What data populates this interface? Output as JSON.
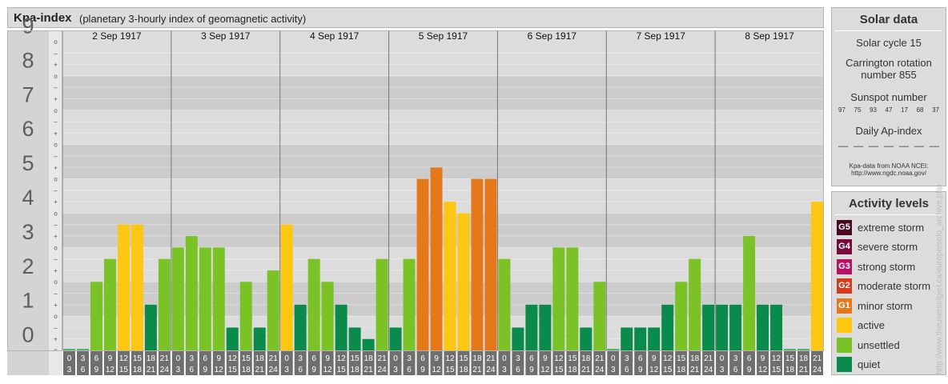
{
  "header": {
    "title": "Kpa-index",
    "subtitle": "(planetary 3-hourly index of geomagnetic activity)"
  },
  "chart_data": {
    "type": "bar",
    "y_ticks": [
      "0",
      "1",
      "2",
      "3",
      "4",
      "5",
      "6",
      "7",
      "8",
      "9"
    ],
    "sub_ticks": [
      "o",
      "+",
      "–"
    ],
    "ylim": [
      0,
      9
    ],
    "days": [
      "2 Sep 1917",
      "3 Sep 1917",
      "4 Sep 1917",
      "5 Sep 1917",
      "6 Sep 1917",
      "7 Sep 1917",
      "8 Sep 1917"
    ],
    "slot_labels": [
      [
        "0",
        "3"
      ],
      [
        "3",
        "6"
      ],
      [
        "6",
        "9"
      ],
      [
        "9",
        "12"
      ],
      [
        "12",
        "15"
      ],
      [
        "15",
        "18"
      ],
      [
        "18",
        "21"
      ],
      [
        "21",
        "24"
      ]
    ],
    "values": [
      [
        0,
        0,
        2,
        2.667,
        3.667,
        3.667,
        1.333,
        2.667
      ],
      [
        3,
        3.333,
        3,
        3,
        0.667,
        2,
        0.667,
        2.333
      ],
      [
        3.667,
        1.333,
        2.667,
        2,
        1.333,
        0.667,
        0.333,
        2.667
      ],
      [
        0.667,
        2.667,
        5,
        5.333,
        4.333,
        4,
        5,
        5
      ],
      [
        2.667,
        0.667,
        1.333,
        1.333,
        3,
        3,
        0.667,
        2
      ],
      [
        0,
        0.667,
        0.667,
        0.667,
        1.333,
        2,
        2.667,
        1.333
      ],
      [
        1.333,
        1.333,
        3.333,
        1.333,
        1.333,
        0,
        0,
        4.333
      ]
    ],
    "colors": {
      "quiet": "#0b8b4b",
      "unsettled": "#7ac225",
      "active": "#fcc611",
      "minor": "#e6781c",
      "bar_below_zero": "#56b468",
      "band_dark": "#cccccc",
      "band_light": "#dcdcdc",
      "slot_box": "#6f6f6f",
      "slot_text": "#ffffff",
      "tick_text": "#5d5d5d"
    }
  },
  "solar": {
    "title": "Solar data",
    "cycle": "Solar cycle 15",
    "carrington_line1": "Carrington rotation",
    "carrington_line2": "number 855",
    "sunspot_label": "Sunspot number",
    "sunspots": [
      "97",
      "75",
      "93",
      "47",
      "17",
      "68",
      "37"
    ],
    "ap_label": "Daily Ap-index",
    "ap_values": [
      "––",
      "––",
      "––",
      "––",
      "––",
      "––",
      "––"
    ],
    "source_line1": "Kpa-data from NOAA NCEI:",
    "source_line2": "http://www.ngdc.noaa.gov/"
  },
  "activity": {
    "title": "Activity levels",
    "levels": [
      {
        "badge": "G5",
        "label": "extreme storm",
        "color": "#4a0722"
      },
      {
        "badge": "G4",
        "label": "severe storm",
        "color": "#7a0a3c"
      },
      {
        "badge": "G3",
        "label": "strong storm",
        "color": "#bb1165"
      },
      {
        "badge": "G2",
        "label": "moderate storm",
        "color": "#d53a1d"
      },
      {
        "badge": "G1",
        "label": "minor storm",
        "color": "#e6781c"
      },
      {
        "badge": "",
        "label": "active",
        "color": "#fcc611"
      },
      {
        "badge": "",
        "label": "unsettled",
        "color": "#7ac225"
      },
      {
        "badge": "",
        "label": "quiet",
        "color": "#0b8b4b"
      }
    ]
  },
  "watermark": "http://www.theusersofgiet.ca/europe/solo_archive.php"
}
